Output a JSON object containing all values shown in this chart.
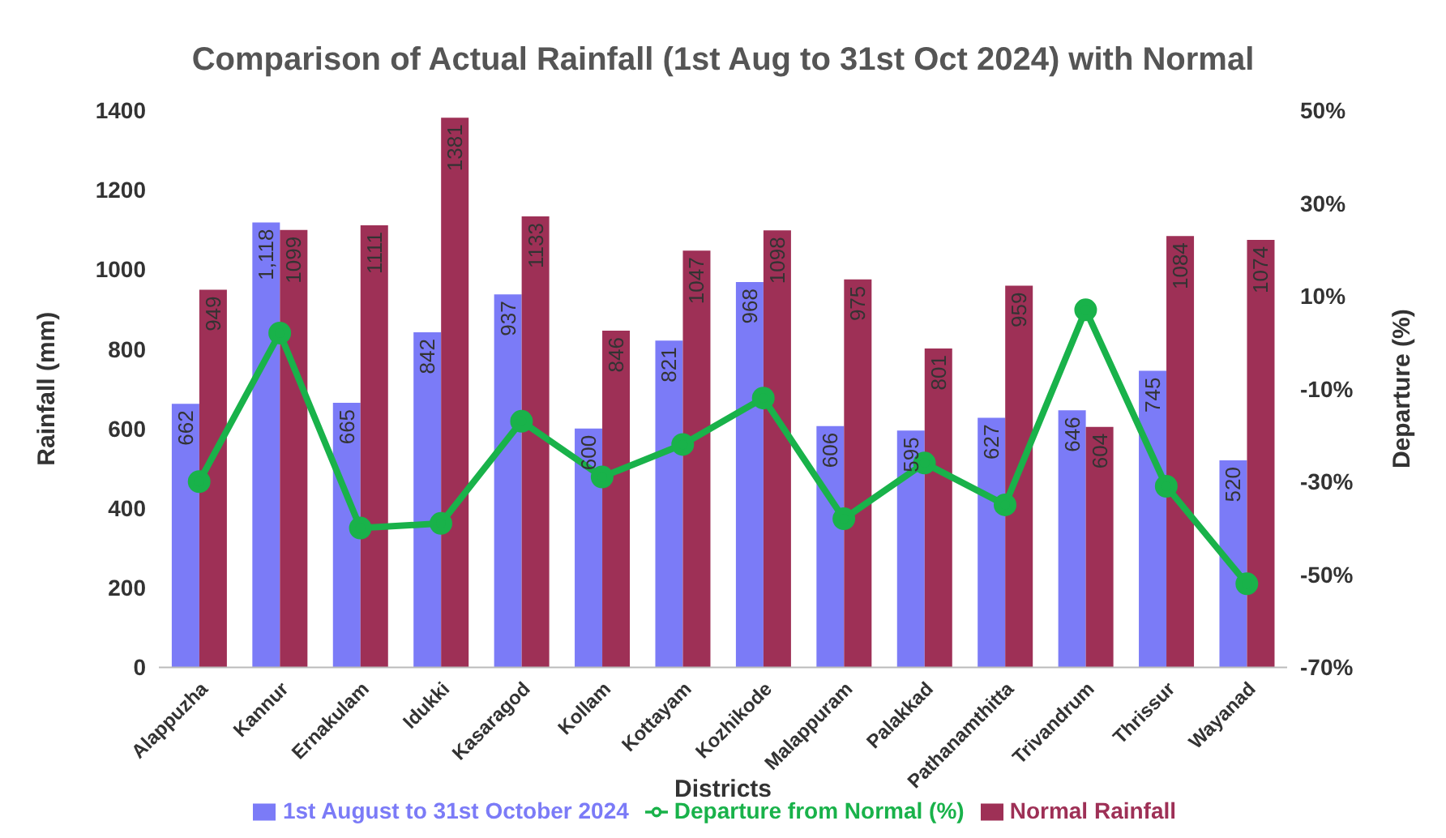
{
  "chart_data": {
    "type": "bar",
    "title": "Comparison of Actual Rainfall (1st Aug to 31st Oct 2024) with Normal",
    "xlabel": "Districts",
    "ylabel": "Rainfall (mm)",
    "y2label": "Departure (%)",
    "categories": [
      "Alappuzha",
      "Kannur",
      "Ernakulam",
      "Idukki",
      "Kasaragod",
      "Kollam",
      "Kottayam",
      "Kozhikode",
      "Malappuram",
      "Palakkad",
      "Pathanamthitta",
      "Trivandrum",
      "Thrissur",
      "Wayanad"
    ],
    "series": [
      {
        "name": "1st August to 31st October 2024",
        "color": "#7b7bf7",
        "values": [
          662,
          1118,
          665,
          842,
          937,
          600,
          821,
          968,
          606,
          595,
          627,
          646,
          745,
          520
        ],
        "value_labels": [
          "662",
          "1,118",
          "665",
          "842",
          "937",
          "600",
          "821",
          "968",
          "606",
          "595",
          "627",
          "646",
          "745",
          "520"
        ]
      },
      {
        "name": "Normal Rainfall",
        "color": "#9e3056",
        "values": [
          949,
          1099,
          1111,
          1381,
          1133,
          846,
          1047,
          1098,
          975,
          801,
          959,
          604,
          1084,
          1074
        ],
        "value_labels": [
          "949",
          "1099",
          "1111",
          "1381",
          "1133",
          "846",
          "1047",
          "1098",
          "975",
          "801",
          "959",
          "604",
          "1084",
          "1074"
        ]
      },
      {
        "name": "Departure from Normal (%)",
        "type": "line",
        "axis": "y2",
        "color": "#19b24a",
        "marker": "circle",
        "values": [
          -30,
          2,
          -40,
          -39,
          -17,
          -29,
          -22,
          -12,
          -38,
          -26,
          -35,
          7,
          -31,
          -52
        ]
      }
    ],
    "ylim": [
      0,
      1400
    ],
    "yticks": [
      0,
      200,
      400,
      600,
      800,
      1000,
      1200,
      1400
    ],
    "y2lim": [
      -70,
      50
    ],
    "y2ticks": [
      {
        "value": -70,
        "label": "-70%"
      },
      {
        "value": -50,
        "label": "-50%"
      },
      {
        "value": -30,
        "label": "-30%"
      },
      {
        "value": -10,
        "label": "-10%"
      },
      {
        "value": 10,
        "label": "10%"
      },
      {
        "value": 30,
        "label": "30%"
      },
      {
        "value": 50,
        "label": "50%"
      }
    ],
    "legend": "bottom"
  }
}
